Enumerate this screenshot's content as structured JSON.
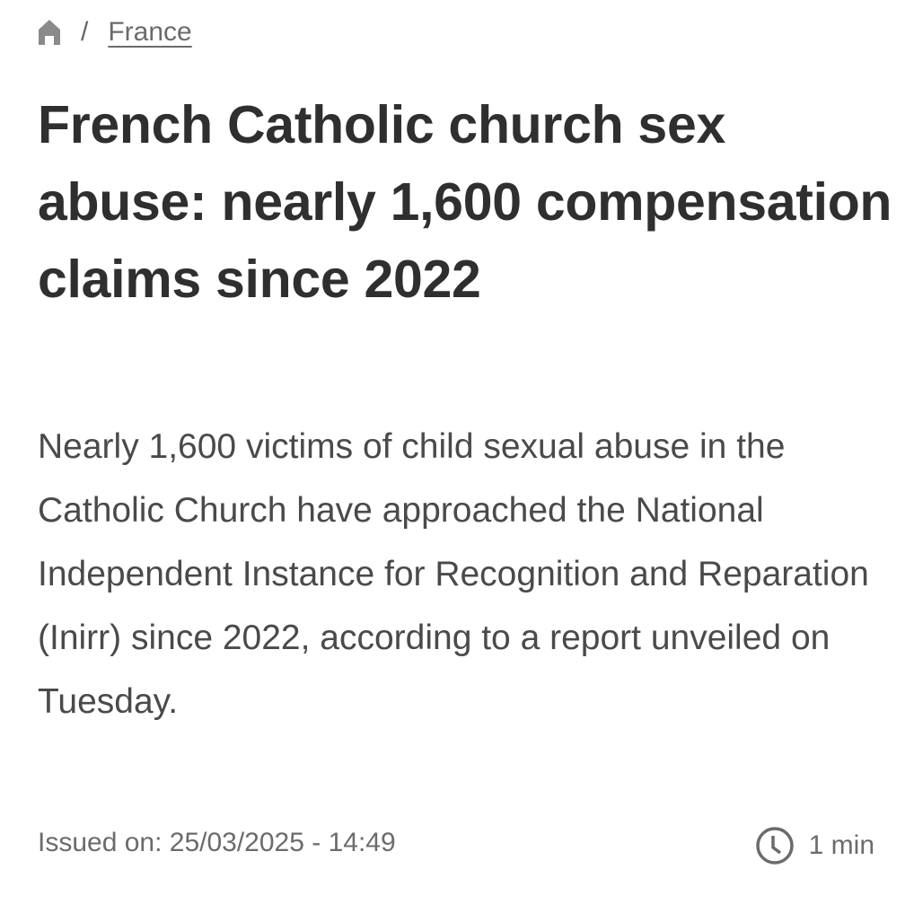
{
  "breadcrumb": {
    "home_icon": "home-icon",
    "separator": "/",
    "section": "France"
  },
  "article": {
    "title": "French Catholic church sex abuse: nearly 1,600 compensation claims since 2022",
    "lead": "Nearly 1,600 victims of child sexual abuse in the Catholic Church have approached the National Independent Instance for Recognition and Reparation (Inirr) since 2022, according to a report unveiled on Tuesday.",
    "issued": "Issued on: 25/03/2025 - 14:49",
    "reading_time": "1 min",
    "reading_icon": "clock-icon"
  }
}
